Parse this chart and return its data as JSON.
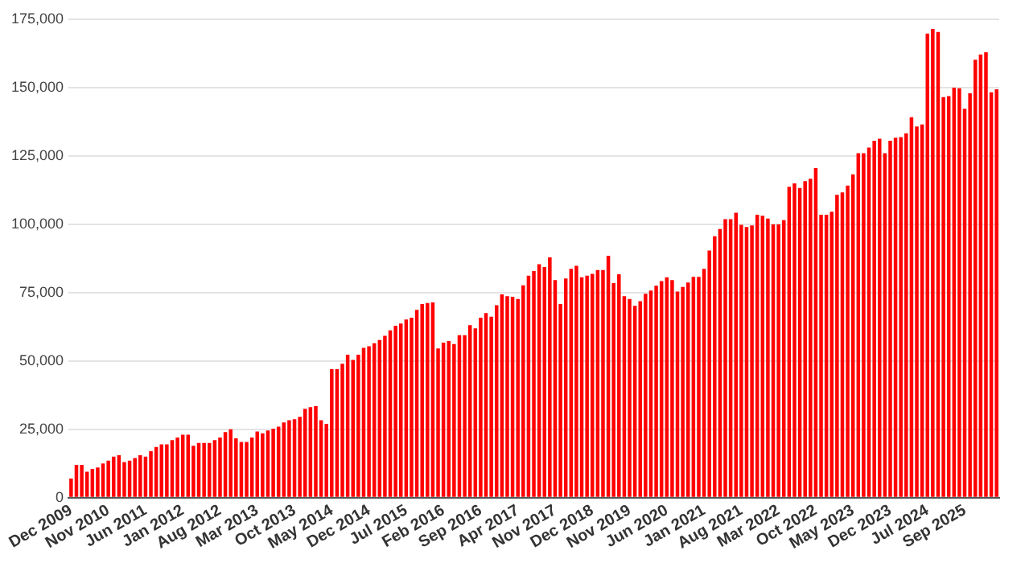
{
  "chart_data": {
    "type": "bar",
    "color": "#ff0000",
    "grid": "y",
    "categories": [
      "Dec 2009",
      null,
      null,
      null,
      null,
      null,
      null,
      "Nov 2010",
      null,
      null,
      null,
      null,
      null,
      null,
      "Jun 2011",
      null,
      null,
      null,
      null,
      null,
      null,
      "Jan 2012",
      null,
      null,
      null,
      null,
      null,
      null,
      "Aug 2012",
      null,
      null,
      null,
      null,
      null,
      null,
      "Mar 2013",
      null,
      null,
      null,
      null,
      null,
      null,
      "Oct 2013",
      null,
      null,
      null,
      null,
      null,
      null,
      "May 2014",
      null,
      null,
      null,
      null,
      null,
      null,
      "Dec 2014",
      null,
      null,
      null,
      null,
      null,
      null,
      "Jul 2015",
      null,
      null,
      null,
      null,
      null,
      null,
      "Feb 2016",
      null,
      null,
      null,
      null,
      null,
      null,
      "Sep 2016",
      null,
      null,
      null,
      null,
      null,
      null,
      "Apr 2017",
      null,
      null,
      null,
      null,
      null,
      null,
      "Nov 2017",
      null,
      null,
      null,
      null,
      null,
      null,
      "Dec 2018",
      null,
      null,
      null,
      null,
      null,
      null,
      "Nov 2019",
      null,
      null,
      null,
      null,
      null,
      null,
      "Jun 2020",
      null,
      null,
      null,
      null,
      null,
      null,
      "Jan 2021",
      null,
      null,
      null,
      null,
      null,
      null,
      "Aug 2021",
      null,
      null,
      null,
      null,
      null,
      null,
      "Mar 2022",
      null,
      null,
      null,
      null,
      null,
      null,
      "Oct 2022",
      null,
      null,
      null,
      null,
      null,
      null,
      "May 2023",
      null,
      null,
      null,
      null,
      null,
      null,
      "Dec 2023",
      null,
      null,
      null,
      null,
      null,
      null,
      "Jul 2024",
      null,
      null,
      null,
      null,
      null,
      null,
      "Sep 2025",
      null,
      null,
      null,
      null,
      null,
      null
    ],
    "values": [
      7000,
      12000,
      12000,
      9500,
      10500,
      11000,
      12500,
      13500,
      15000,
      15500,
      13000,
      13500,
      14500,
      15500,
      15000,
      17000,
      18500,
      19500,
      19500,
      21000,
      22000,
      23000,
      23000,
      19000,
      20000,
      20000,
      20000,
      21000,
      22000,
      24000,
      25000,
      21700,
      20400,
      20400,
      22000,
      24200,
      23500,
      24600,
      25200,
      26000,
      27500,
      28300,
      28700,
      29600,
      32500,
      33100,
      33500,
      28300,
      27000,
      47000,
      47000,
      49000,
      52300,
      50400,
      52300,
      54800,
      55400,
      56500,
      57700,
      59200,
      61200,
      62900,
      63700,
      65200,
      65800,
      68700,
      70800,
      71200,
      71400,
      54600,
      56700,
      57300,
      56200,
      59400,
      59400,
      63100,
      61900,
      65800,
      67500,
      66200,
      70400,
      74400,
      73700,
      73500,
      72700,
      77700,
      81200,
      82900,
      85400,
      84400,
      87900,
      79600,
      70800,
      80200,
      83700,
      84800,
      80600,
      81200,
      81900,
      83300,
      83300,
      88500,
      78500,
      81700,
      73700,
      72700,
      70200,
      71900,
      74600,
      75800,
      77500,
      79200,
      80600,
      79600,
      75400,
      77100,
      78700,
      80800,
      80800,
      83700,
      90400,
      95600,
      98300,
      101900,
      101900,
      104200,
      99800,
      99000,
      99600,
      103500,
      103100,
      102100,
      100000,
      100000,
      101500,
      113700,
      115000,
      113300,
      115800,
      116700,
      120600,
      103500,
      103500,
      104600,
      110800,
      111700,
      114200,
      118300,
      126000,
      126000,
      128100,
      130600,
      131300,
      126000,
      130600,
      131700,
      131900,
      133300,
      139200,
      135800,
      136500,
      169800,
      171500,
      170400,
      146500,
      146900,
      150000,
      149800,
      142300,
      147900,
      160200,
      162100,
      162900,
      148300,
      149400
    ],
    "ylim": [
      0,
      175000
    ],
    "yticks": [
      {
        "value": 0,
        "label": "0"
      },
      {
        "value": 25000,
        "label": "25,000"
      },
      {
        "value": 50000,
        "label": "50,000"
      },
      {
        "value": 75000,
        "label": "75,000"
      },
      {
        "value": 100000,
        "label": "100,000"
      },
      {
        "value": 125000,
        "label": "125,000"
      },
      {
        "value": 150000,
        "label": "150,000"
      },
      {
        "value": 175000,
        "label": "175,000"
      }
    ]
  }
}
